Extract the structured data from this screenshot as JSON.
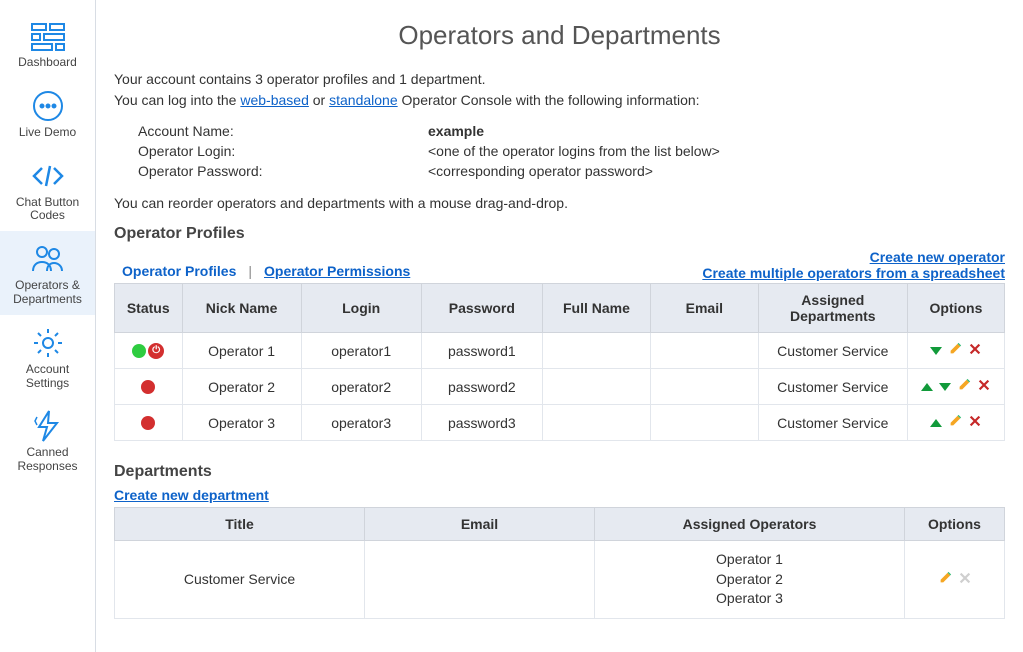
{
  "colors": {
    "accent": "#1e88e5",
    "link": "#0d62c9",
    "header_bg": "#e6eaf1",
    "border": "#d0d4db",
    "row_border": "#e2e6ec",
    "active_nav_bg": "#eaf2fb",
    "green_arrow": "#119a3a",
    "status_green": "#2ecc40",
    "status_red": "#d32f2f",
    "edit": "#f5a623",
    "delete": "#c62828",
    "disabled": "#cfcfcf"
  },
  "sidebar": {
    "items": [
      {
        "label": "Dashboard",
        "icon": "dashboard-icon",
        "active": false
      },
      {
        "label": "Live Demo",
        "icon": "chat-icon",
        "active": false
      },
      {
        "label": "Chat Button Codes",
        "icon": "code-icon",
        "active": false
      },
      {
        "label": "Operators & Departments",
        "icon": "people-icon",
        "active": true
      },
      {
        "label": "Account Settings",
        "icon": "gear-icon",
        "active": false
      },
      {
        "label": "Canned Responses",
        "icon": "bolt-icon",
        "active": false
      }
    ]
  },
  "page": {
    "title": "Operators and Departments",
    "intro_line1_a": "Your account contains 3 operator profiles and 1 department.",
    "intro_line2_prefix": "You can log into the ",
    "intro_link_web": "web-based",
    "intro_or": " or ",
    "intro_link_standalone": "standalone",
    "intro_line2_suffix": " Operator Console with the following information:",
    "login_info": {
      "account_label": "Account Name:",
      "account_value": "example",
      "login_label": "Operator Login:",
      "login_value": "<one of the operator logins from the list below>",
      "password_label": "Operator Password:",
      "password_value": "<corresponding operator password>"
    },
    "reorder_note": "You can reorder operators and departments with a mouse drag-and-drop."
  },
  "operators_section": {
    "title": "Operator Profiles",
    "tabs": {
      "profiles": "Operator Profiles",
      "permissions": "Operator Permissions",
      "separator": "|"
    },
    "links": {
      "create_one": "Create new operator",
      "create_many": "Create multiple operators from a spreadsheet"
    },
    "columns": {
      "status": "Status",
      "nick": "Nick Name",
      "login": "Login",
      "password": "Password",
      "full": "Full Name",
      "email": "Email",
      "dept": "Assigned Departments",
      "options": "Options"
    },
    "rows": [
      {
        "status_color": "#2ecc40",
        "power": true,
        "nick": "Operator 1",
        "login": "operator1",
        "password": "password1",
        "full": "",
        "email": "",
        "dept": "Customer Service",
        "up": false,
        "down": true,
        "can_delete": true
      },
      {
        "status_color": "#d32f2f",
        "power": false,
        "nick": "Operator 2",
        "login": "operator2",
        "password": "password2",
        "full": "",
        "email": "",
        "dept": "Customer Service",
        "up": true,
        "down": true,
        "can_delete": true
      },
      {
        "status_color": "#d32f2f",
        "power": false,
        "nick": "Operator 3",
        "login": "operator3",
        "password": "password3",
        "full": "",
        "email": "",
        "dept": "Customer Service",
        "up": true,
        "down": false,
        "can_delete": true
      }
    ]
  },
  "departments_section": {
    "title": "Departments",
    "create_link": "Create new department",
    "columns": {
      "title": "Title",
      "email": "Email",
      "ops": "Assigned Operators",
      "options": "Options"
    },
    "rows": [
      {
        "title": "Customer Service",
        "email": "",
        "operators": [
          "Operator 1",
          "Operator 2",
          "Operator 3"
        ],
        "can_delete": false
      }
    ]
  }
}
